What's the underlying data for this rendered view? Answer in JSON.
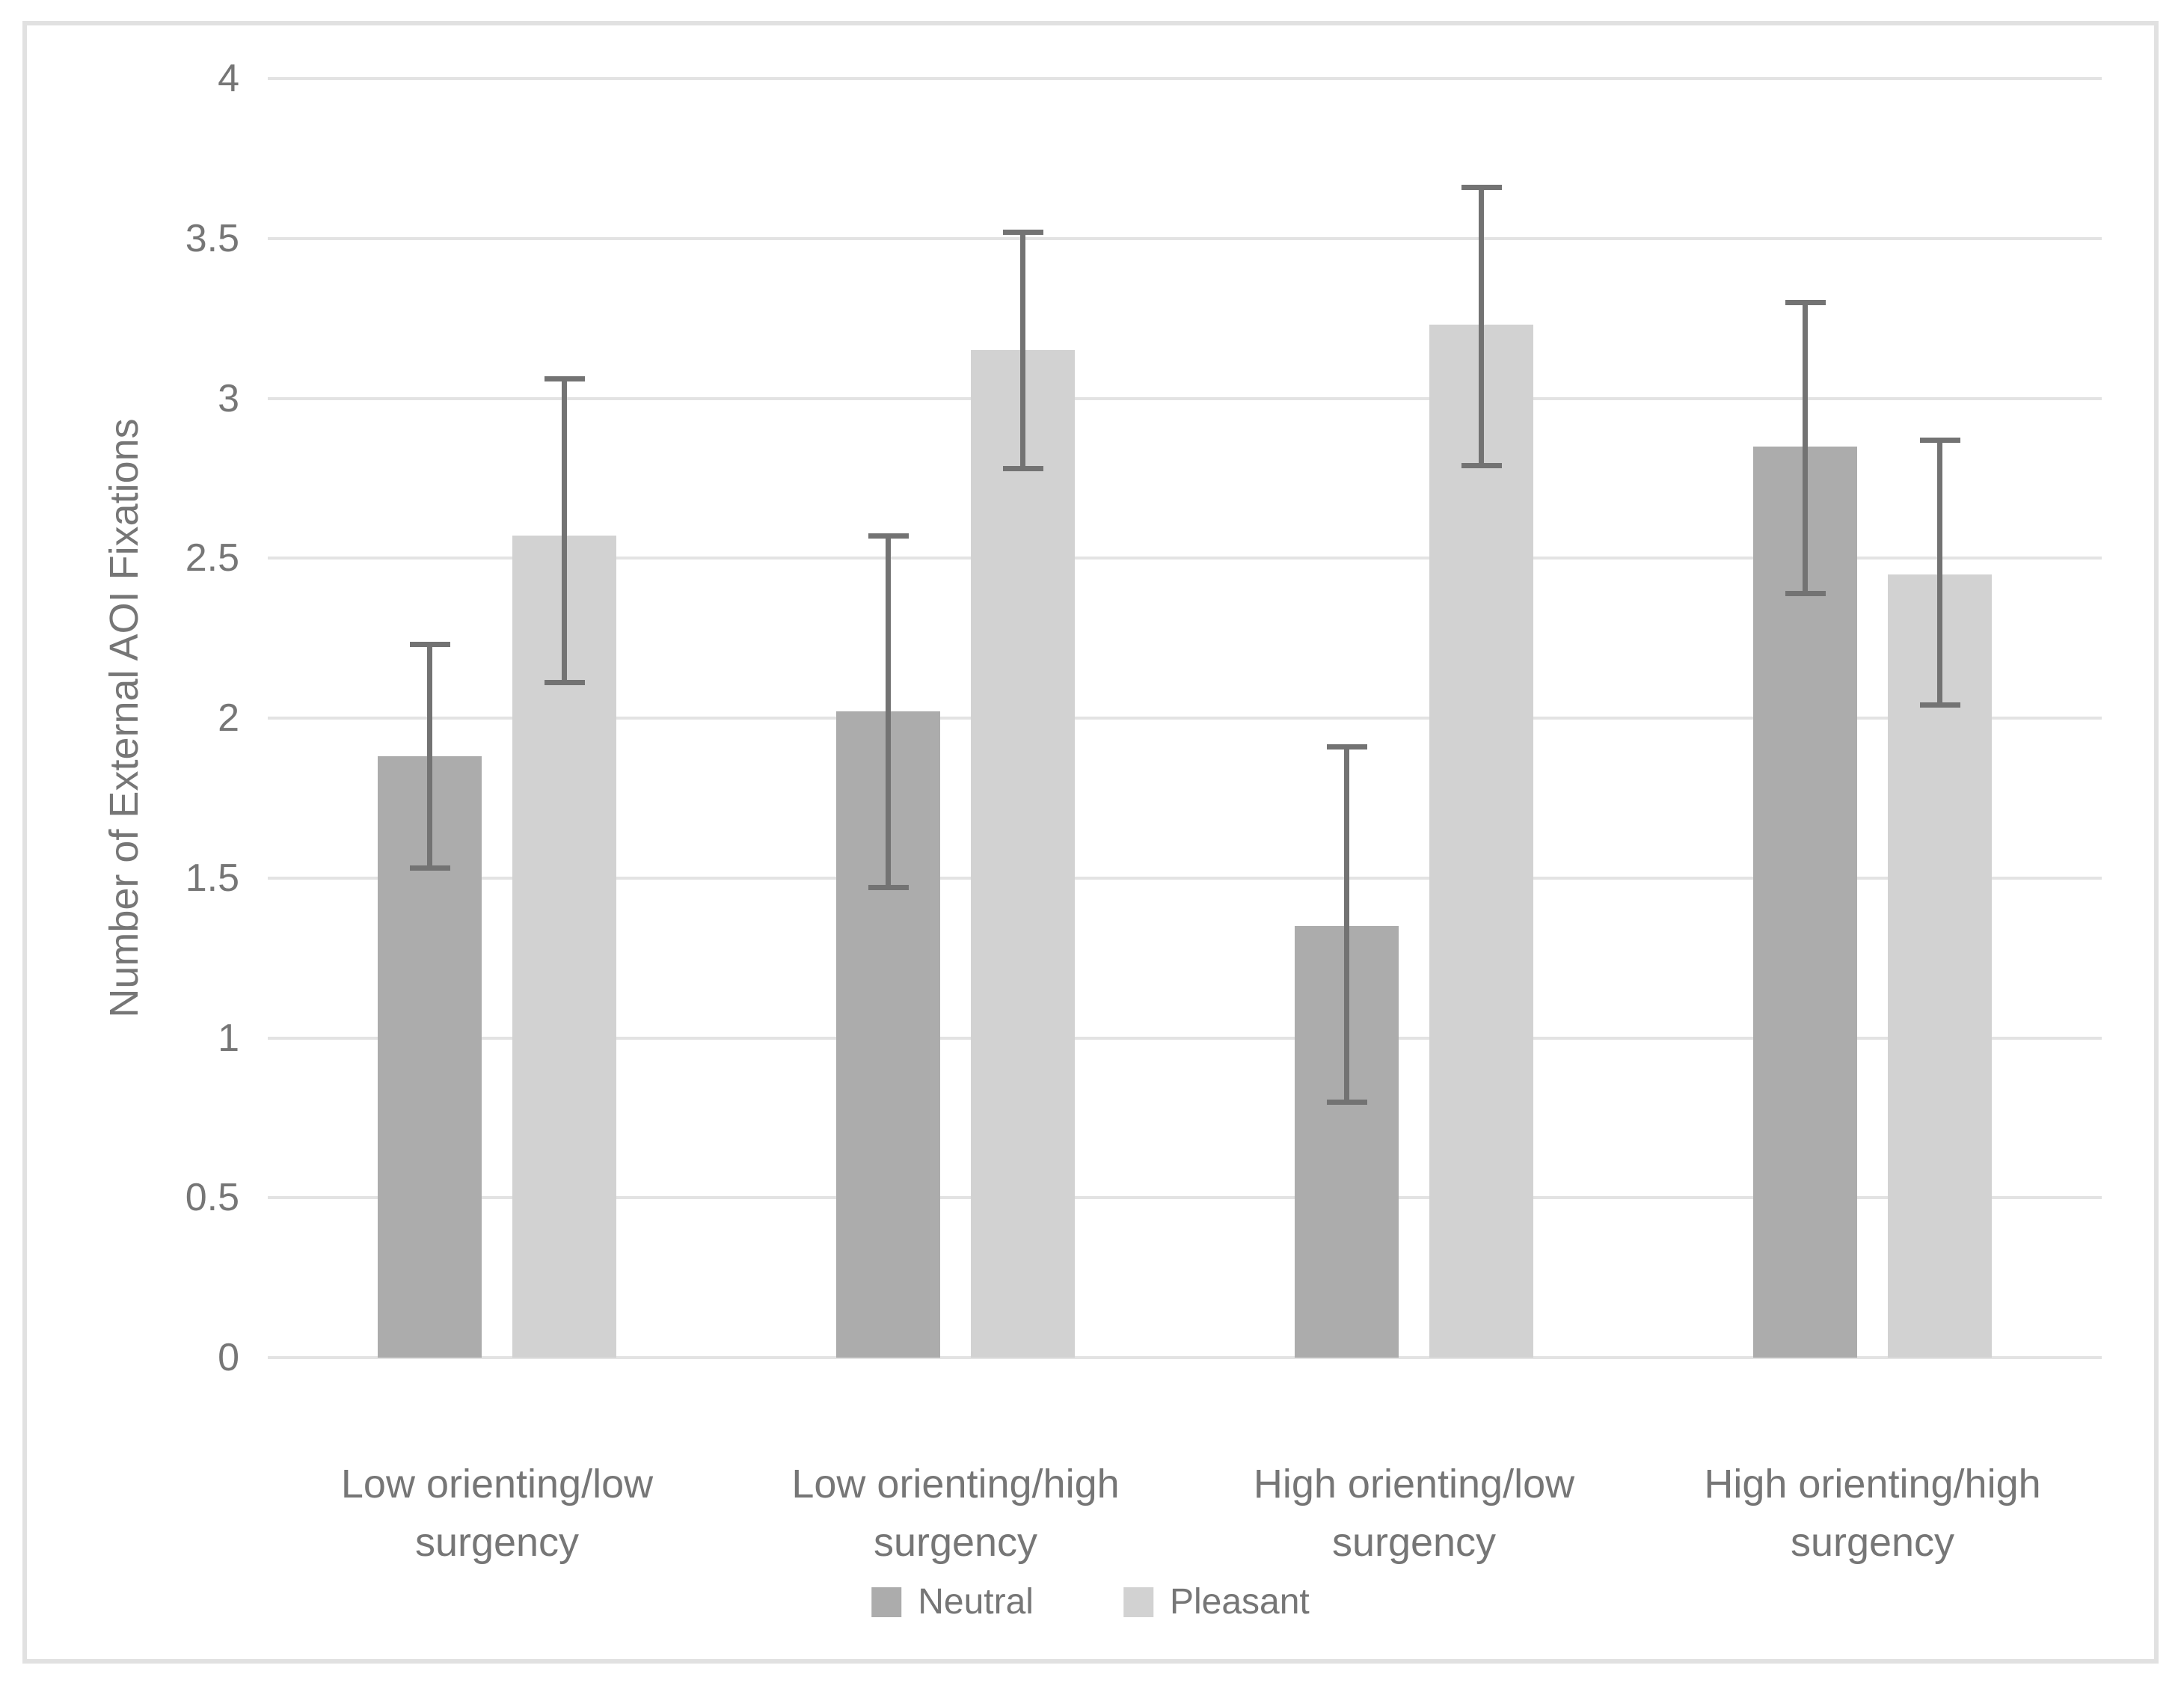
{
  "chart_data": {
    "type": "bar",
    "title": "",
    "xlabel": "",
    "ylabel": "Number of External AOI Fixations",
    "ylim": [
      0,
      4
    ],
    "ytick_step": 0.5,
    "ytick_labels": [
      "0",
      "0.5",
      "1",
      "1.5",
      "2",
      "2.5",
      "3",
      "3.5",
      "4"
    ],
    "grid": true,
    "legend_position": "bottom-center",
    "categories": [
      "Low orienting/low surgency",
      "Low orienting/high surgency",
      "High orienting/low surgency",
      "High orienting/high surgency"
    ],
    "category_label_lines": [
      [
        "Low orienting/low",
        "surgency"
      ],
      [
        "Low orienting/high",
        "surgency"
      ],
      [
        "High orienting/low",
        "surgency"
      ],
      [
        "High orienting/high",
        "surgency"
      ]
    ],
    "series": [
      {
        "name": "Neutral",
        "color": "#ACACAC",
        "values": [
          1.88,
          2.02,
          1.35,
          2.85
        ],
        "error_low": [
          1.53,
          1.47,
          0.8,
          2.39
        ],
        "error_high": [
          2.23,
          2.57,
          1.91,
          3.3
        ]
      },
      {
        "name": "Pleasant",
        "color": "#D2D2D2",
        "values": [
          2.57,
          3.15,
          3.23,
          2.45
        ],
        "error_low": [
          2.11,
          2.78,
          2.79,
          2.04
        ],
        "error_high": [
          3.06,
          3.52,
          3.66,
          2.87
        ]
      }
    ],
    "colors": {
      "gridline": "#E3E3E3",
      "error_bar": "#737373",
      "axis_text": "#767676",
      "frame_border": "#E1E1E1",
      "background": "#FFFFFF"
    }
  }
}
